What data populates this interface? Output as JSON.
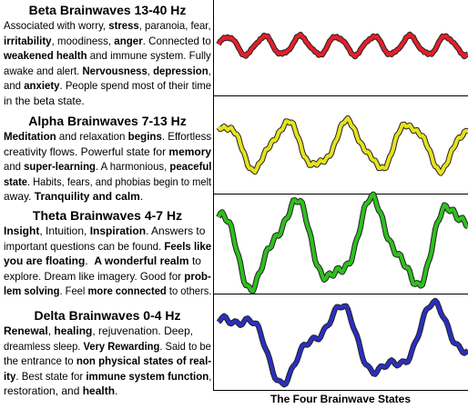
{
  "caption": "The Four Brainwave States",
  "sections": [
    {
      "title": "Beta Brainwaves 13-40 Hz",
      "lines": [
        [
          {
            "text": "Associated with worry, ",
            "bold": false
          },
          {
            "text": "stress",
            "bold": true
          },
          {
            "text": ", paranoia, fear,",
            "bold": false
          }
        ],
        [
          {
            "text": "irritability",
            "bold": true
          },
          {
            "text": ", moodiness, ",
            "bold": false
          },
          {
            "text": "anger",
            "bold": true
          },
          {
            "text": ". Connected to",
            "bold": false
          }
        ],
        [
          {
            "text": "weakened health",
            "bold": true
          },
          {
            "text": " and immune system. Fully",
            "bold": false
          }
        ],
        [
          {
            "text": "awake and alert. ",
            "bold": false
          },
          {
            "text": "Nervousness",
            "bold": true
          },
          {
            "text": ", ",
            "bold": false
          },
          {
            "text": "depression",
            "bold": true
          },
          {
            "text": ",",
            "bold": false
          }
        ],
        [
          {
            "text": "and ",
            "bold": false
          },
          {
            "text": "anxiety",
            "bold": true
          },
          {
            "text": ". People spend most of their time",
            "bold": false
          }
        ],
        [
          {
            "text": "in the beta state.",
            "bold": false
          }
        ]
      ]
    },
    {
      "title": "Alpha Brainwaves 7-13 Hz",
      "lines": [
        [
          {
            "text": "Meditation",
            "bold": true
          },
          {
            "text": " and relaxation ",
            "bold": false
          },
          {
            "text": "begins",
            "bold": true
          },
          {
            "text": ". Effortless",
            "bold": false
          }
        ],
        [
          {
            "text": "creativity flows. Powerful state for ",
            "bold": false
          },
          {
            "text": "memory",
            "bold": true
          }
        ],
        [
          {
            "text": "and ",
            "bold": false
          },
          {
            "text": "super-learning",
            "bold": true
          },
          {
            "text": ". A harmonious, ",
            "bold": false
          },
          {
            "text": "peaceful",
            "bold": true
          }
        ],
        [
          {
            "text": "state",
            "bold": true
          },
          {
            "text": ". Habits, fears, and phobias begin to melt",
            "bold": false
          }
        ],
        [
          {
            "text": "away. ",
            "bold": false
          },
          {
            "text": "Tranquility and calm",
            "bold": true
          },
          {
            "text": ".",
            "bold": false
          }
        ]
      ]
    },
    {
      "title": "Theta Brainwaves 4-7 Hz",
      "lines": [
        [
          {
            "text": "Insight",
            "bold": true
          },
          {
            "text": ", Intuition, ",
            "bold": false
          },
          {
            "text": "Inspiration",
            "bold": true
          },
          {
            "text": ". Answers to",
            "bold": false
          }
        ],
        [
          {
            "text": "important questions can be found. ",
            "bold": false
          },
          {
            "text": "Feels like",
            "bold": true
          }
        ],
        [
          {
            "text": "you are floating",
            "bold": true
          },
          {
            "text": ".  ",
            "bold": false
          },
          {
            "text": "A wonderful realm",
            "bold": true
          },
          {
            "text": " to",
            "bold": false
          }
        ],
        [
          {
            "text": "explore. Dream like imagery. Good for ",
            "bold": false
          },
          {
            "text": "prob-",
            "bold": true
          }
        ],
        [
          {
            "text": "lem solving",
            "bold": true
          },
          {
            "text": ". Feel ",
            "bold": false
          },
          {
            "text": "more connected",
            "bold": true
          },
          {
            "text": " to others.",
            "bold": false
          }
        ]
      ]
    },
    {
      "title": "Delta Brainwaves 0-4 Hz",
      "lines": [
        [
          {
            "text": "Renewal",
            "bold": true
          },
          {
            "text": ", ",
            "bold": false
          },
          {
            "text": "healing",
            "bold": true
          },
          {
            "text": ", rejuvenation. Deep,",
            "bold": false
          }
        ],
        [
          {
            "text": "dreamless sleep. ",
            "bold": false
          },
          {
            "text": "Very Rewarding",
            "bold": true
          },
          {
            "text": ". Said to be",
            "bold": false
          }
        ],
        [
          {
            "text": "the entrance to ",
            "bold": false
          },
          {
            "text": "non physical states of real-",
            "bold": true
          }
        ],
        [
          {
            "text": "ity",
            "bold": true
          },
          {
            "text": ". Best state for ",
            "bold": false
          },
          {
            "text": "immune system function",
            "bold": true
          },
          {
            "text": ",",
            "bold": false
          }
        ],
        [
          {
            "text": "restoration, and ",
            "bold": false
          },
          {
            "text": "health",
            "bold": true
          },
          {
            "text": ".",
            "bold": false
          }
        ]
      ]
    }
  ]
}
